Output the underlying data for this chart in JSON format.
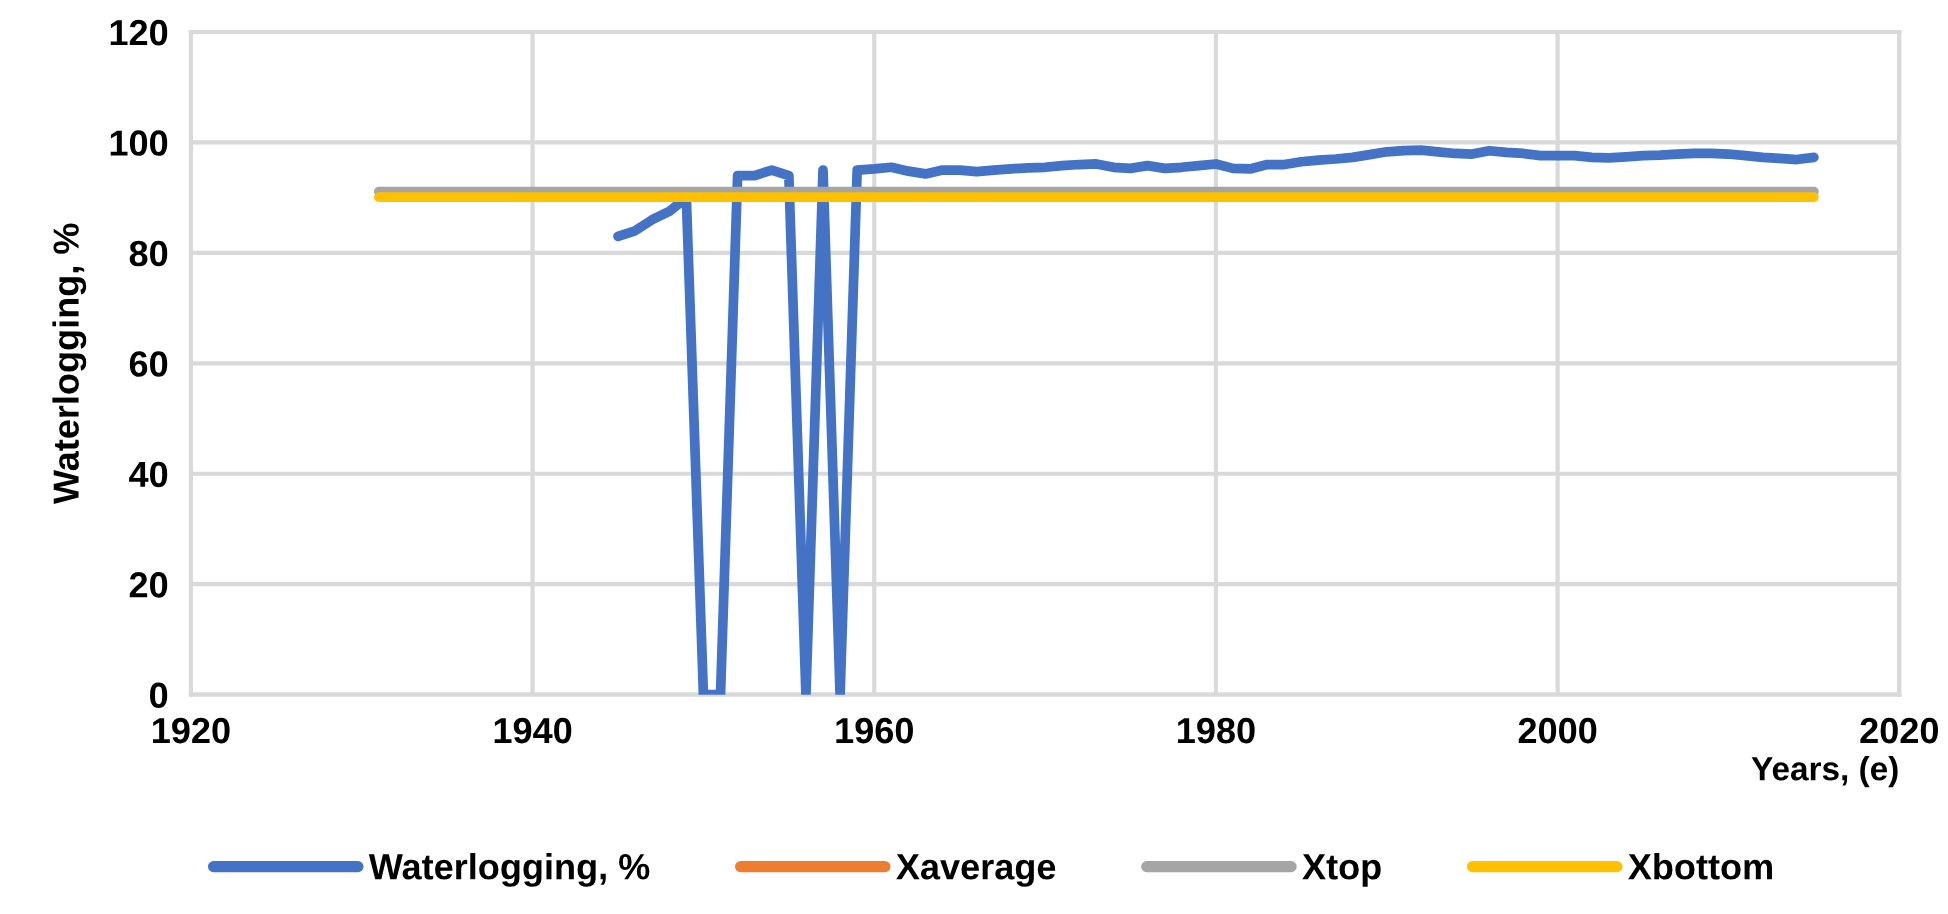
{
  "chart_data": {
    "type": "line",
    "xlabel": "Years, (e)",
    "ylabel": "Waterlogging, %",
    "xlim": [
      1920,
      2020
    ],
    "xticks": [
      1920,
      1940,
      1960,
      1980,
      2000,
      2020
    ],
    "ylim": [
      0,
      120
    ],
    "yticks": [
      0,
      20,
      40,
      60,
      80,
      100,
      120
    ],
    "grid": true,
    "legend": "bottom",
    "marker": "none",
    "line_style": "solid",
    "series": [
      {
        "name": "Waterlogging, %",
        "color": "#4472c4",
        "x": [
          1945,
          1946,
          1947,
          1948,
          1949,
          1950,
          1951,
          1952,
          1953,
          1954,
          1955,
          1956,
          1957,
          1958,
          1959,
          1960,
          1961,
          1962,
          1963,
          1964,
          1965,
          1966,
          1967,
          1968,
          1969,
          1970,
          1971,
          1972,
          1973,
          1974,
          1975,
          1976,
          1977,
          1978,
          1979,
          1980,
          1981,
          1982,
          1983,
          1984,
          1985,
          1986,
          1987,
          1988,
          1989,
          1990,
          1991,
          1992,
          1993,
          1994,
          1995,
          1996,
          1997,
          1998,
          1999,
          2000,
          2001,
          2002,
          2003,
          2004,
          2005,
          2006,
          2007,
          2008,
          2009,
          2010,
          2011,
          2012,
          2013,
          2014,
          2015
        ],
        "values": [
          83,
          84,
          86,
          87.5,
          90,
          0,
          0,
          94,
          94,
          95,
          94,
          0,
          95,
          0,
          95,
          95.2,
          95.5,
          94.8,
          94.3,
          95,
          95,
          94.7,
          95,
          95.2,
          95.4,
          95.5,
          95.8,
          96,
          96.1,
          95.5,
          95.3,
          95.8,
          95.3,
          95.5,
          95.8,
          96.1,
          95.3,
          95.2,
          96,
          96,
          96.5,
          96.8,
          97,
          97.3,
          97.8,
          98.3,
          98.5,
          98.6,
          98.3,
          98,
          97.9,
          98.5,
          98.2,
          98,
          97.6,
          97.6,
          97.6,
          97.3,
          97.2,
          97.4,
          97.6,
          97.7,
          97.9,
          98,
          98,
          97.9,
          97.6,
          97.3,
          97.1,
          96.9,
          97.3
        ]
      },
      {
        "name": "Xaverage",
        "color": "#ed7d31"
      },
      {
        "name": "Xtop",
        "color": "#a5a5a5",
        "x": [
          1931,
          2015
        ],
        "values": [
          91.1,
          91.1
        ]
      },
      {
        "name": "Xbottom",
        "color": "#ffc000",
        "x": [
          1931,
          2015
        ],
        "values": [
          90.1,
          90.1
        ]
      }
    ]
  }
}
